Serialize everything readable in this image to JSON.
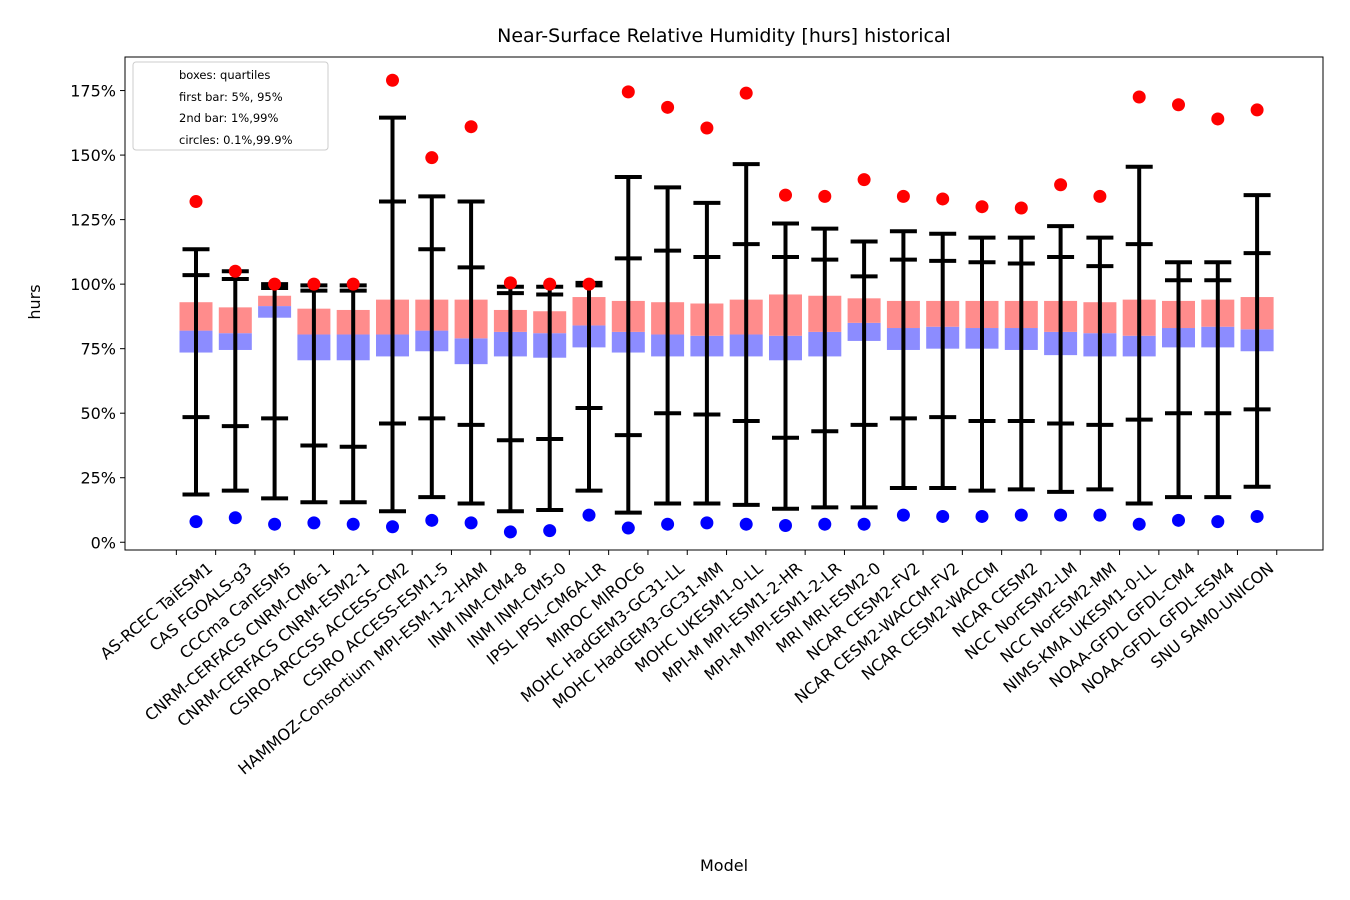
{
  "chart_data": {
    "type": "boxplot",
    "title": "Near-Surface Relative Humidity [hurs] historical",
    "xlabel": "Model",
    "ylabel": "hurs",
    "ylim": [
      -3,
      188
    ],
    "yticks": [
      0,
      25,
      50,
      75,
      100,
      125,
      150,
      175
    ],
    "ytick_labels": [
      "0%",
      "25%",
      "50%",
      "75%",
      "100%",
      "125%",
      "150%",
      "175%"
    ],
    "legend": {
      "placement": "top-left",
      "lines": [
        "boxes: quartiles",
        "first bar: 5%, 95%",
        "2nd bar: 1%,99%",
        "circles: 0.1%,99.9%"
      ]
    },
    "colors": {
      "upper_box": "#ff8c8c",
      "lower_box": "#8c8cff",
      "whisker": "#000000",
      "high_circle": "#ff0000",
      "low_circle": "#0000ff"
    },
    "categories": [
      "AS-RCEC TaiESM1",
      "CAS FGOALS-g3",
      "CCCma CanESM5",
      "CNRM-CERFACS CNRM-CM6-1",
      "CNRM-CERFACS CNRM-ESM2-1",
      "CSIRO-ARCCSS ACCESS-CM2",
      "CSIRO ACCESS-ESM1-5",
      "HAMMOZ-Consortium MPI-ESM-1-2-HAM",
      "INM INM-CM4-8",
      "INM INM-CM5-0",
      "IPSL IPSL-CM6A-LR",
      "MIROC MIROC6",
      "MOHC HadGEM3-GC31-LL",
      "MOHC HadGEM3-GC31-MM",
      "MOHC UKESM1-0-LL",
      "MPI-M MPI-ESM1-2-HR",
      "MPI-M MPI-ESM1-2-LR",
      "MRI MRI-ESM2-0",
      "NCAR CESM2-FV2",
      "NCAR CESM2-WACCM-FV2",
      "NCAR CESM2-WACCM",
      "NCAR CESM2",
      "NCC NorESM2-LM",
      "NCC NorESM2-MM",
      "NIMS-KMA UKESM1-0-LL",
      "NOAA-GFDL GFDL-CM4",
      "NOAA-GFDL GFDL-ESM4",
      "SNU SAM0-UNICON"
    ],
    "stats": {
      "p0_1": [
        8,
        9.5,
        7,
        7.5,
        7,
        6,
        8.5,
        7.5,
        4,
        4.5,
        10.5,
        5.5,
        7,
        7.5,
        7,
        6.5,
        7,
        7,
        10.5,
        10,
        10,
        10.5,
        10.5,
        10.5,
        7,
        8.5,
        8,
        10
      ],
      "p1": [
        18.5,
        20,
        17,
        15.5,
        15.5,
        12,
        17.5,
        15,
        12,
        12.5,
        20,
        11.5,
        15,
        15,
        14.5,
        13,
        13.5,
        13.5,
        21,
        21,
        20,
        20.5,
        19.5,
        20.5,
        15,
        17.5,
        17.5,
        21.5
      ],
      "p5": [
        48.5,
        45,
        48,
        37.5,
        37,
        46,
        48,
        45.5,
        39.5,
        40,
        52,
        41.5,
        50,
        49.5,
        47,
        40.5,
        43,
        45.5,
        48,
        48.5,
        47,
        47,
        46,
        45.5,
        47.5,
        50,
        50,
        51.5
      ],
      "q1": [
        73.5,
        74.5,
        87,
        70.5,
        70.5,
        72,
        74,
        69,
        72,
        71.5,
        75.5,
        73.5,
        72,
        72,
        72,
        70.5,
        72,
        78,
        74.5,
        75,
        75,
        74.5,
        72.5,
        72,
        72,
        75.5,
        75.5,
        74
      ],
      "median": [
        82,
        81,
        91.5,
        80.5,
        80.5,
        80.5,
        82,
        79,
        81.5,
        81,
        84,
        81.5,
        80.5,
        80,
        80.5,
        80,
        81.5,
        85,
        83,
        83.5,
        83,
        83,
        81.5,
        81,
        80,
        83,
        83.5,
        82.5
      ],
      "q3": [
        93,
        91,
        95.5,
        90.5,
        90,
        94,
        94,
        94,
        90,
        89.5,
        95,
        93.5,
        93,
        92.5,
        94,
        96,
        95.5,
        94.5,
        93.5,
        93.5,
        93.5,
        93.5,
        93.5,
        93,
        94,
        93.5,
        94,
        95
      ],
      "p95": [
        103.5,
        102,
        98.5,
        97.5,
        97.5,
        132,
        113.5,
        106.5,
        96.5,
        96,
        99.5,
        110,
        113,
        110.5,
        115.5,
        110.5,
        109.5,
        103,
        109.5,
        109,
        108.5,
        108,
        110.5,
        107,
        115.5,
        101.5,
        101.5,
        112
      ],
      "p99": [
        113.5,
        105,
        100,
        99.5,
        99.5,
        164.5,
        134,
        132,
        99,
        99,
        100.5,
        141.5,
        137.5,
        131.5,
        146.5,
        123.5,
        121.5,
        116.5,
        120.5,
        119.5,
        118,
        118,
        122.5,
        118,
        145.5,
        108.5,
        108.5,
        134.5
      ],
      "p99_9": [
        132,
        105,
        100,
        100,
        100,
        179,
        149,
        161,
        100.5,
        100,
        100,
        174.5,
        168.5,
        160.5,
        174,
        134.5,
        134,
        140.5,
        134,
        133,
        130,
        129.5,
        138.5,
        134,
        172.5,
        169.5,
        164,
        167.5
      ]
    }
  }
}
